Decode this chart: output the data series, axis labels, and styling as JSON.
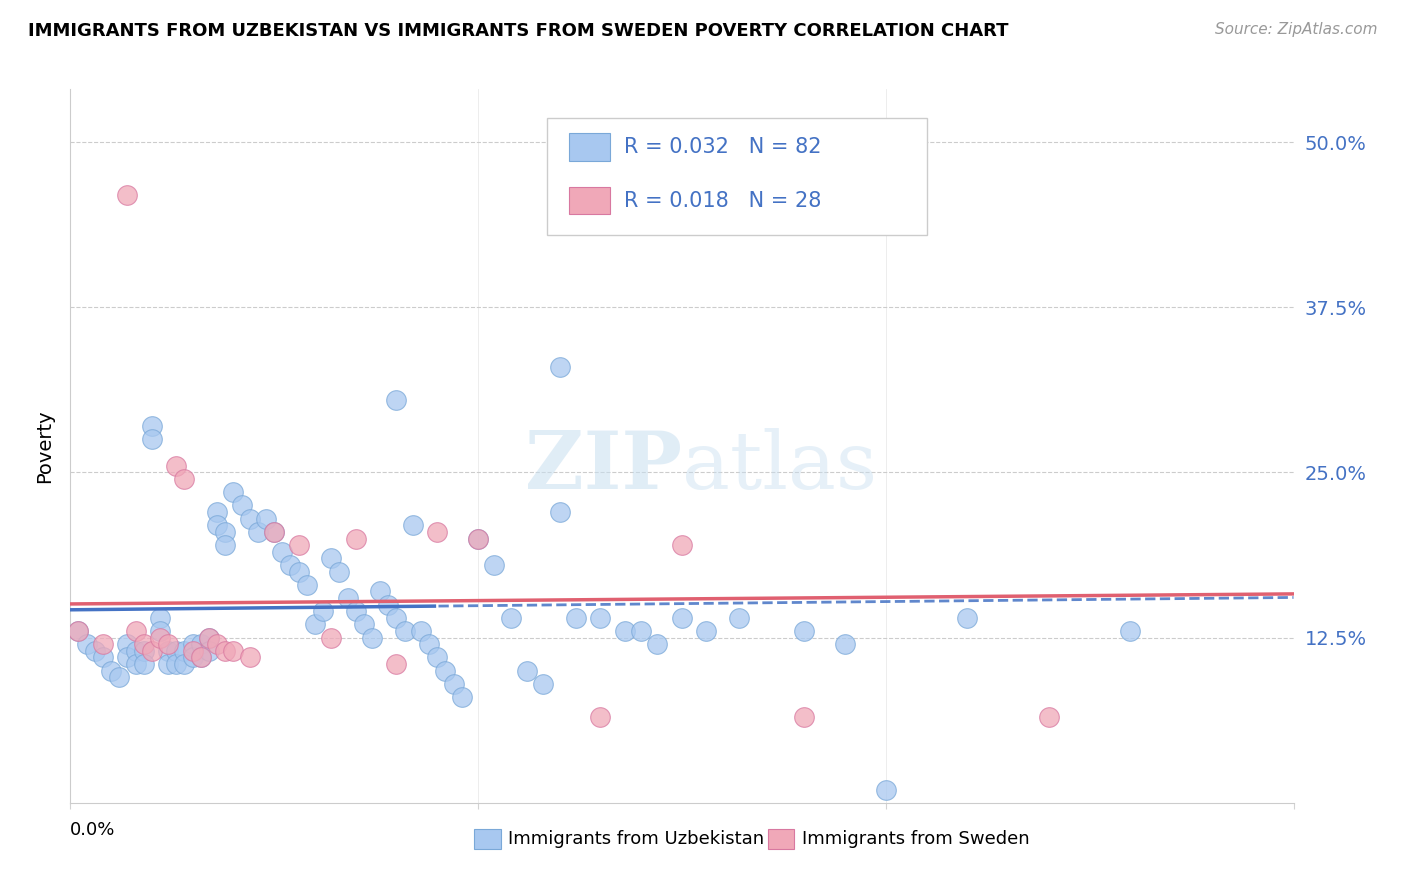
{
  "title": "IMMIGRANTS FROM UZBEKISTAN VS IMMIGRANTS FROM SWEDEN POVERTY CORRELATION CHART",
  "source": "Source: ZipAtlas.com",
  "ylabel": "Poverty",
  "y_tick_labels": [
    "12.5%",
    "25.0%",
    "37.5%",
    "50.0%"
  ],
  "y_tick_values": [
    0.125,
    0.25,
    0.375,
    0.5
  ],
  "x_lim": [
    0.0,
    0.15
  ],
  "y_lim": [
    0.0,
    0.54
  ],
  "uzbekistan_color": "#a8c8f0",
  "sweden_color": "#f0a8b8",
  "uzbekistan_line_color": "#4472c4",
  "sweden_line_color": "#e06070",
  "legend_text_color": "#4472c4",
  "uzbekistan_R": 0.032,
  "uzbekistan_N": 82,
  "sweden_R": 0.018,
  "sweden_N": 28,
  "uzbekistan_x": [
    0.001,
    0.002,
    0.003,
    0.004,
    0.005,
    0.006,
    0.007,
    0.007,
    0.008,
    0.008,
    0.009,
    0.009,
    0.01,
    0.01,
    0.011,
    0.011,
    0.012,
    0.012,
    0.013,
    0.013,
    0.014,
    0.014,
    0.015,
    0.015,
    0.016,
    0.016,
    0.017,
    0.017,
    0.018,
    0.018,
    0.019,
    0.019,
    0.02,
    0.021,
    0.022,
    0.023,
    0.024,
    0.025,
    0.026,
    0.027,
    0.028,
    0.029,
    0.03,
    0.031,
    0.032,
    0.033,
    0.034,
    0.035,
    0.036,
    0.037,
    0.038,
    0.039,
    0.04,
    0.041,
    0.042,
    0.043,
    0.044,
    0.045,
    0.046,
    0.047,
    0.048,
    0.05,
    0.052,
    0.054,
    0.056,
    0.058,
    0.06,
    0.062,
    0.065,
    0.068,
    0.07,
    0.072,
    0.075,
    0.078,
    0.082,
    0.09,
    0.095,
    0.1,
    0.11,
    0.13,
    0.06,
    0.04
  ],
  "uzbekistan_y": [
    0.13,
    0.12,
    0.115,
    0.11,
    0.1,
    0.095,
    0.12,
    0.11,
    0.115,
    0.105,
    0.115,
    0.105,
    0.285,
    0.275,
    0.14,
    0.13,
    0.115,
    0.105,
    0.115,
    0.105,
    0.115,
    0.105,
    0.12,
    0.11,
    0.12,
    0.11,
    0.125,
    0.115,
    0.22,
    0.21,
    0.205,
    0.195,
    0.235,
    0.225,
    0.215,
    0.205,
    0.215,
    0.205,
    0.19,
    0.18,
    0.175,
    0.165,
    0.135,
    0.145,
    0.185,
    0.175,
    0.155,
    0.145,
    0.135,
    0.125,
    0.16,
    0.15,
    0.14,
    0.13,
    0.21,
    0.13,
    0.12,
    0.11,
    0.1,
    0.09,
    0.08,
    0.2,
    0.18,
    0.14,
    0.1,
    0.09,
    0.33,
    0.14,
    0.14,
    0.13,
    0.13,
    0.12,
    0.14,
    0.13,
    0.14,
    0.13,
    0.12,
    0.01,
    0.14,
    0.13,
    0.22,
    0.305
  ],
  "sweden_x": [
    0.001,
    0.004,
    0.007,
    0.008,
    0.009,
    0.01,
    0.011,
    0.012,
    0.013,
    0.014,
    0.015,
    0.016,
    0.017,
    0.018,
    0.019,
    0.02,
    0.022,
    0.025,
    0.028,
    0.032,
    0.035,
    0.04,
    0.045,
    0.05,
    0.065,
    0.075,
    0.09,
    0.12
  ],
  "sweden_y": [
    0.13,
    0.12,
    0.46,
    0.13,
    0.12,
    0.115,
    0.125,
    0.12,
    0.255,
    0.245,
    0.115,
    0.11,
    0.125,
    0.12,
    0.115,
    0.115,
    0.11,
    0.205,
    0.195,
    0.125,
    0.2,
    0.105,
    0.205,
    0.2,
    0.065,
    0.195,
    0.065,
    0.065
  ]
}
